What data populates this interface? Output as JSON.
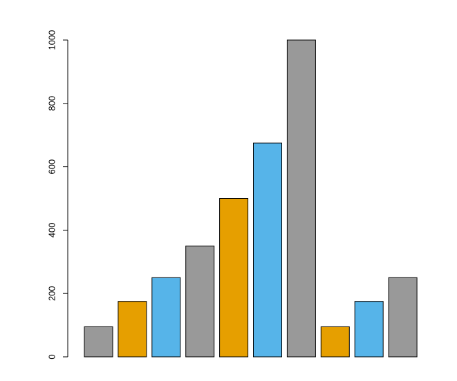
{
  "chart_data": {
    "type": "bar",
    "categories": [
      null,
      null,
      null,
      null,
      null,
      null,
      null,
      null,
      null,
      null
    ],
    "values": [
      95,
      175,
      250,
      350,
      500,
      675,
      1000,
      95,
      175,
      250
    ],
    "colors": [
      "#999999",
      "#e69f00",
      "#56b4e9",
      "#999999",
      "#e69f00",
      "#56b4e9",
      "#999999",
      "#e69f00",
      "#56b4e9",
      "#999999"
    ],
    "ylim": [
      0,
      1000
    ],
    "yticks": [
      0,
      200,
      400,
      600,
      800,
      1000
    ],
    "grid": false
  }
}
